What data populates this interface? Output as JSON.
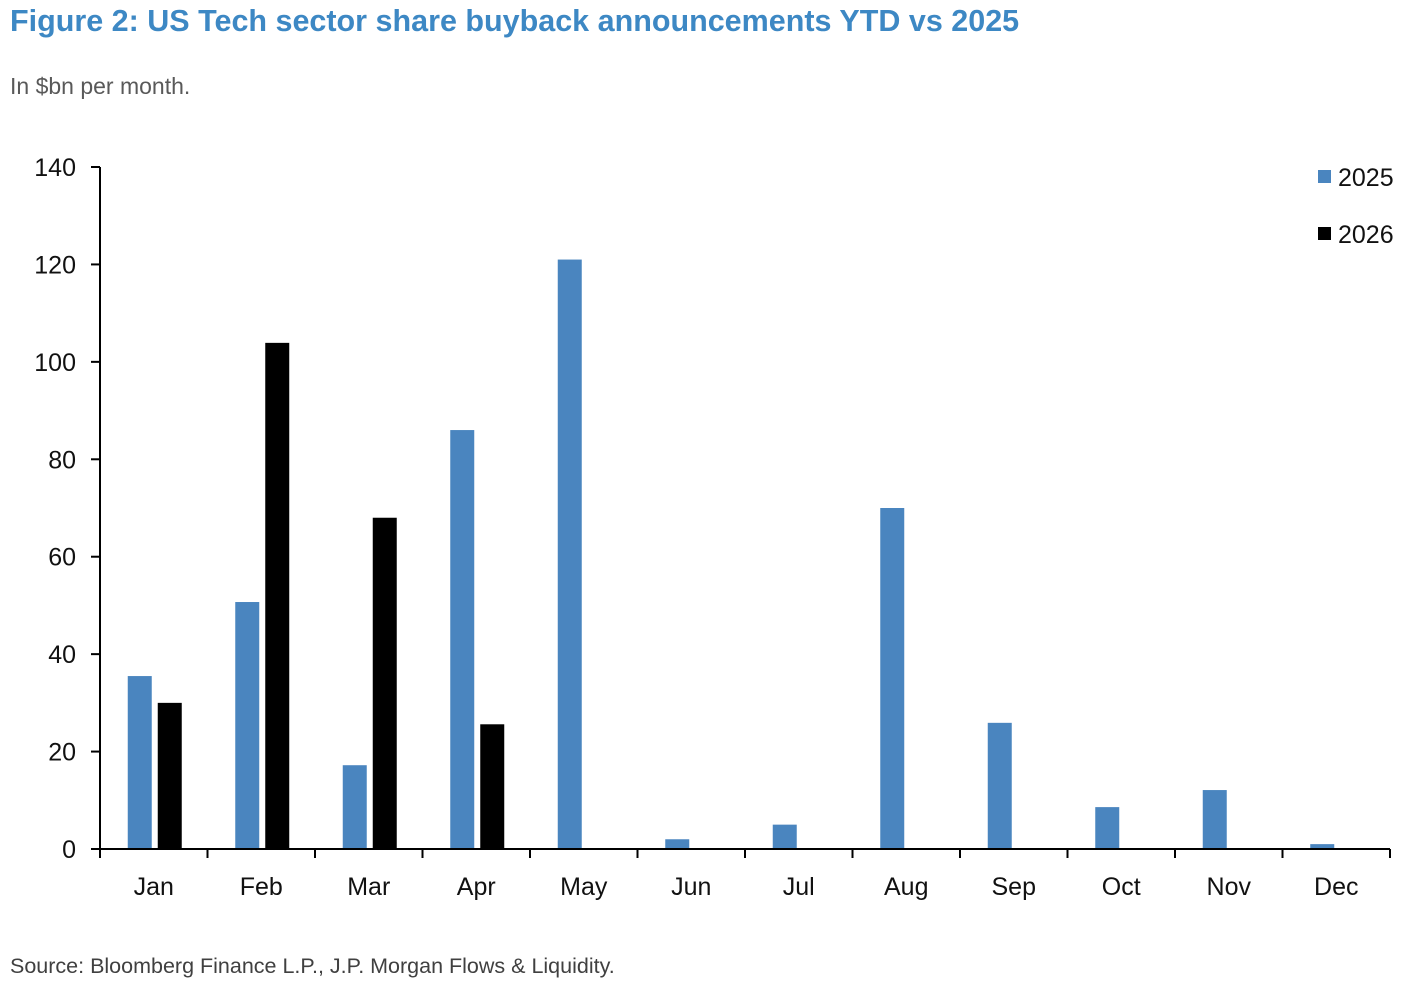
{
  "theme": {
    "title_color": "#3d88c4",
    "subtitle_color": "#595959"
  },
  "chart_data": {
    "type": "bar",
    "title": "Figure 2: US Tech sector share buyback announcements YTD vs 2025",
    "subtitle": "In $bn per month.",
    "source": "Source: Bloomberg Finance L.P., J.P. Morgan Flows & Liquidity.",
    "categories": [
      "Jan",
      "Feb",
      "Mar",
      "Apr",
      "May",
      "Jun",
      "Jul",
      "Aug",
      "Sep",
      "Oct",
      "Nov",
      "Dec"
    ],
    "series": [
      {
        "name": "2025",
        "color": "#4a85bf",
        "values": [
          35.5,
          50.7,
          17.2,
          86.0,
          121.0,
          2.0,
          5.0,
          70.0,
          25.9,
          8.6,
          12.1,
          1.0
        ]
      },
      {
        "name": "2026",
        "color": "#000000",
        "values": [
          30.0,
          103.9,
          68.0,
          25.6,
          null,
          null,
          null,
          null,
          null,
          null,
          null,
          null
        ]
      }
    ],
    "ylim": [
      0,
      140
    ],
    "yticks": [
      0,
      20,
      40,
      60,
      80,
      100,
      120,
      140
    ],
    "grid": false,
    "legend": "top-right"
  }
}
